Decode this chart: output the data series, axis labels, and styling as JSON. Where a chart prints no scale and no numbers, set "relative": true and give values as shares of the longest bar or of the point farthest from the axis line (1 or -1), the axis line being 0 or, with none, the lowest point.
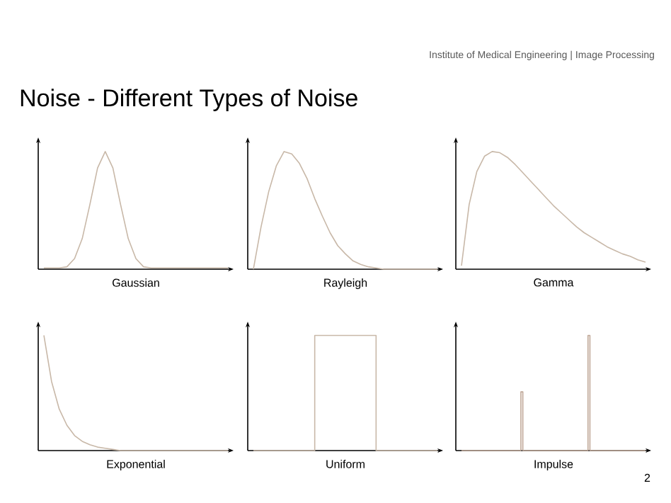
{
  "chart_data": [
    {
      "type": "other",
      "title": "Noise - Different Types of Noise",
      "annotations": [
        "Institute of Medical Engineering | Image Processing",
        "2"
      ]
    },
    {
      "type": "line",
      "xlabel": "Gaussian",
      "relative": true,
      "categories": [
        null,
        null,
        null,
        null,
        null,
        null,
        null,
        null,
        null,
        null,
        null,
        null,
        null,
        null,
        null,
        null,
        null,
        null,
        null,
        null,
        null,
        null,
        null,
        null,
        null
      ],
      "series": [
        {
          "color": "#c8b8a8",
          "values": [
            0.01,
            0.01,
            0.01,
            0.02,
            0.09,
            0.26,
            0.55,
            0.86,
            1,
            0.86,
            0.55,
            0.26,
            0.09,
            0.02,
            0.01,
            0.01,
            0.01,
            0.01,
            0.01,
            0.01,
            0.01,
            0.01,
            0.01,
            0.01,
            0.01
          ]
        }
      ]
    },
    {
      "type": "line",
      "xlabel": "Rayleigh",
      "relative": true,
      "categories": [
        null,
        null,
        null,
        null,
        null,
        null,
        null,
        null,
        null,
        null,
        null,
        null,
        null,
        null,
        null,
        null,
        null,
        null,
        null,
        null,
        null,
        null,
        null,
        null,
        null
      ],
      "series": [
        {
          "color": "#c8b8a8",
          "values": [
            0,
            0.36,
            0.66,
            0.88,
            1,
            0.98,
            0.9,
            0.77,
            0.6,
            0.45,
            0.31,
            0.2,
            0.13,
            0.07,
            0.04,
            0.02,
            0.01,
            0,
            0,
            0,
            0,
            0,
            0,
            0,
            0
          ]
        }
      ]
    },
    {
      "type": "line",
      "xlabel": "Gamma",
      "relative": true,
      "categories": [
        null,
        null,
        null,
        null,
        null,
        null,
        null,
        null,
        null,
        null,
        null,
        null,
        null,
        null,
        null,
        null,
        null,
        null,
        null,
        null,
        null,
        null,
        null,
        null,
        null
      ],
      "series": [
        {
          "color": "#c8b8a8",
          "values": [
            0.03,
            0.55,
            0.83,
            0.96,
            1,
            0.99,
            0.95,
            0.89,
            0.82,
            0.75,
            0.68,
            0.61,
            0.54,
            0.48,
            0.42,
            0.36,
            0.31,
            0.27,
            0.23,
            0.19,
            0.16,
            0.13,
            0.11,
            0.08,
            0.06
          ]
        }
      ]
    },
    {
      "type": "line",
      "xlabel": "Exponential",
      "relative": true,
      "categories": [
        null,
        null,
        null,
        null,
        null,
        null,
        null,
        null,
        null,
        null,
        null,
        null,
        null,
        null,
        null,
        null,
        null,
        null,
        null,
        null,
        null,
        null,
        null,
        null,
        null
      ],
      "series": [
        {
          "color": "#c8b8a8",
          "values": [
            1,
            0.6,
            0.36,
            0.22,
            0.13,
            0.08,
            0.05,
            0.03,
            0.02,
            0.01,
            0,
            0,
            0,
            0,
            0,
            0,
            0,
            0,
            0,
            0,
            0,
            0,
            0,
            0,
            0
          ]
        }
      ]
    },
    {
      "type": "step",
      "xlabel": "Uniform",
      "relative": true,
      "categories": [
        null,
        null,
        null,
        null,
        null,
        null,
        null,
        null,
        null,
        null,
        null,
        null,
        null,
        null,
        null,
        null,
        null,
        null,
        null,
        null,
        null,
        null,
        null,
        null,
        null
      ],
      "series": [
        {
          "color": "#c8b8a8",
          "values": [
            0,
            0,
            0,
            0,
            0,
            0,
            0,
            0,
            1,
            1,
            1,
            1,
            1,
            1,
            1,
            1,
            0,
            0,
            0,
            0,
            0,
            0,
            0,
            0,
            0
          ]
        }
      ]
    },
    {
      "type": "step",
      "xlabel": "Impulse",
      "relative": true,
      "categories": [
        null,
        null,
        null,
        null,
        null,
        null,
        null,
        null,
        null,
        null,
        null,
        null,
        null,
        null,
        null,
        null,
        null,
        null,
        null,
        null,
        null,
        null,
        null,
        null,
        null,
        null,
        null,
        null,
        null,
        null,
        null,
        null,
        null,
        null,
        null,
        null,
        null,
        null,
        null,
        null,
        null,
        null,
        null,
        null,
        null,
        null,
        null,
        null,
        null,
        null,
        null,
        null,
        null,
        null,
        null,
        null,
        null,
        null,
        null,
        null,
        null,
        null,
        null,
        null,
        null,
        null,
        null,
        null,
        null,
        null,
        null,
        null,
        null,
        null,
        null,
        null,
        null,
        null,
        null,
        null,
        null,
        null,
        null,
        null,
        null,
        null,
        null,
        null,
        null,
        null,
        null,
        null,
        null,
        null,
        null,
        null,
        null
      ],
      "series": [
        {
          "color": "#c0a898",
          "values": [
            0,
            0,
            0,
            0,
            0,
            0,
            0,
            0,
            0,
            0,
            0,
            0,
            0,
            0,
            0,
            0,
            0,
            0,
            0,
            0,
            0,
            0,
            0,
            0,
            0,
            0,
            0,
            0,
            0,
            0,
            0,
            0.51,
            0,
            0,
            0,
            0,
            0,
            0,
            0,
            0,
            0,
            0,
            0,
            0,
            0,
            0,
            0,
            0,
            0,
            0,
            0,
            0,
            0,
            0,
            0,
            0,
            0,
            0,
            0,
            0,
            0,
            0,
            0,
            0,
            0,
            0,
            1,
            0,
            0,
            0,
            0,
            0,
            0,
            0,
            0,
            0,
            0,
            0,
            0,
            0,
            0,
            0,
            0,
            0,
            0,
            0,
            0,
            0,
            0,
            0,
            0,
            0,
            0,
            0,
            0,
            0,
            0
          ]
        }
      ]
    }
  ]
}
